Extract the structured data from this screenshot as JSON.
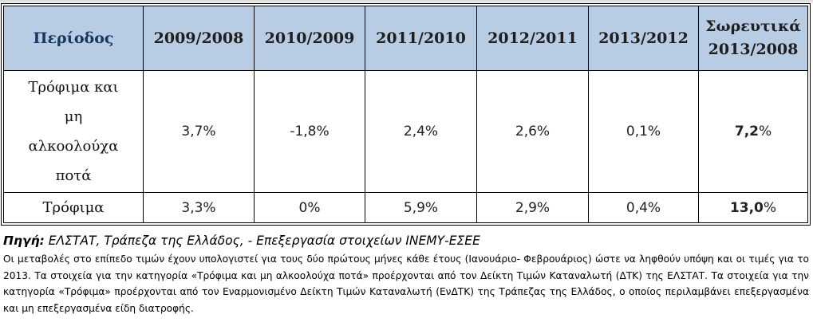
{
  "table": {
    "headers": [
      "Περίοδος",
      "2009/2008",
      "2010/2009",
      "2011/2010",
      "2012/2011",
      "2013/2012",
      "Σωρευτικά 2013/2008"
    ],
    "cumulative_header_lines": [
      "Σωρευτικά",
      "2013/2008"
    ],
    "rows": [
      {
        "label_lines": [
          "Τρόφιμα και",
          "μη",
          "αλκοολούχα",
          "ποτά"
        ],
        "values": [
          "3,7%",
          "-1,8%",
          "2,4%",
          "2,6%",
          "0,1%"
        ],
        "cumulative_num": "7,2",
        "cumulative_unit": "%"
      },
      {
        "label_lines": [
          "Τρόφιμα"
        ],
        "values": [
          "3,3%",
          "0%",
          "5,9%",
          "2,9%",
          "0,4%"
        ],
        "cumulative_num": "13,0",
        "cumulative_unit": "%"
      }
    ],
    "header_fill": "#b8cce4"
  },
  "source": {
    "prefix": "Πηγή:",
    "text": " ΕΛΣΤΑΤ, Τράπεζα της Ελλάδος, - Επεξεργασία στοιχείων ΙΝΕΜΥ-ΕΣΕΕ"
  },
  "note": "Οι μεταβολές στο επίπεδο τιμών έχουν υπολογιστεί για τους δύο  πρώτους μήνες κάθε έτους (Ιανουάριο- Φεβρουάριος) ώστε να ληφθούν υπόψη και οι τιμές για το 2013. Τα στοιχεία για την κατηγορία «Τρόφιμα και μη αλκοολούχα ποτά» προέρχονται από τον Δείκτη Τιμών Καταναλωτή (ΔΤΚ) της ΕΛΣΤΑΤ. Τα στοιχεία για την κατηγορία «Τρόφιμα» προέρχονται από τον Εναρμονισμένο Δείκτη Τιμών Καταναλωτή (ΕνΔΤΚ) της Τράπεζας της Ελλάδος, ο οποίος περιλαμβάνει επεξεργασμένα και μη επεξεργασμένα είδη διατροφής."
}
